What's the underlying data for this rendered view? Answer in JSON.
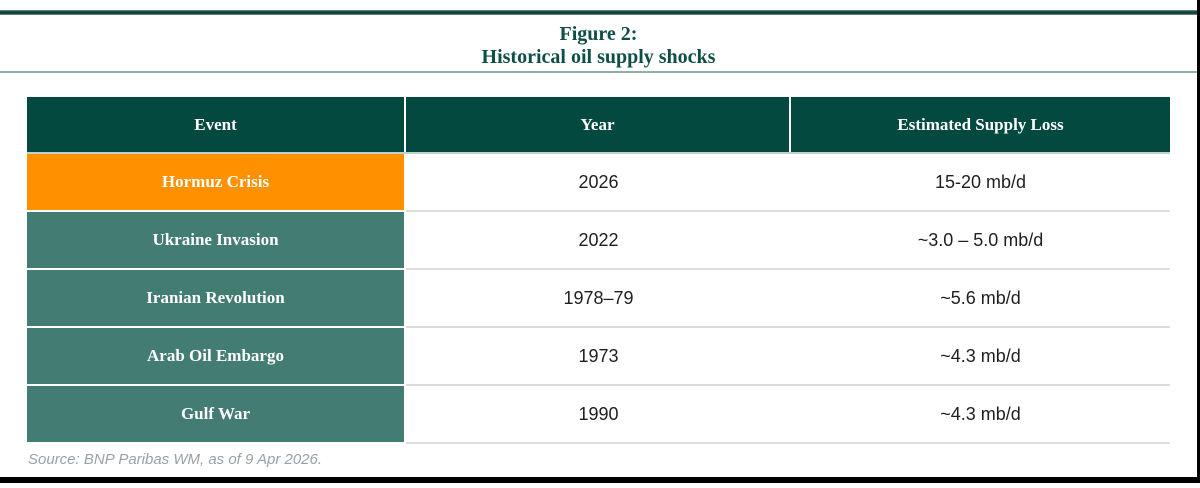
{
  "figure": {
    "title_line1": "Figure 2:",
    "title_line2": "Historical oil supply shocks"
  },
  "table": {
    "columns": [
      "Event",
      "Year",
      "Estimated Supply Loss"
    ],
    "rows": [
      {
        "event": "Hormuz Crisis",
        "year": "2026",
        "loss": "15-20 mb/d",
        "highlight": true
      },
      {
        "event": "Ukraine Invasion",
        "year": "2022",
        "loss": "~3.0 – 5.0 mb/d",
        "highlight": false
      },
      {
        "event": "Iranian Revolution",
        "year": "1978–79",
        "loss": "~5.6 mb/d",
        "highlight": false
      },
      {
        "event": "Arab Oil Embargo",
        "year": "1973",
        "loss": "~4.3 mb/d",
        "highlight": false
      },
      {
        "event": "Gulf War",
        "year": "1990",
        "loss": "~4.3 mb/d",
        "highlight": false
      }
    ]
  },
  "source": "Source: BNP Paribas WM, as of 9 Apr 2026.",
  "colors": {
    "header_bg": "#034940",
    "row_bg": "#427c72",
    "highlight_bg": "#ff9000",
    "title_text": "#0d4f46",
    "accent_rule": "#13423c",
    "light_rule": "#8fafaa",
    "divider": "#dcdcdc",
    "source_text": "#97a1a8"
  }
}
